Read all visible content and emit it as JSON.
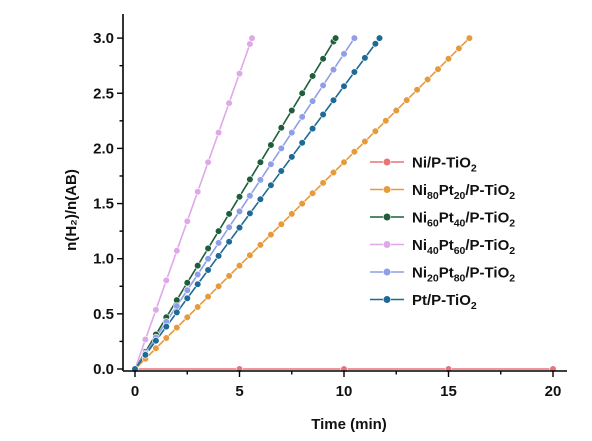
{
  "chart_data": {
    "type": "line",
    "xlabel": "Time (min)",
    "ylabel": "n(H₂)/n(AB)",
    "xlim": [
      0,
      20.5
    ],
    "ylim": [
      0,
      3.2
    ],
    "xticks": [
      "0",
      "5",
      "10",
      "15",
      "20"
    ],
    "yticks": [
      "0.0",
      "0.5",
      "1.0",
      "1.5",
      "2.0",
      "2.5",
      "3.0"
    ],
    "legend_position": "right-middle",
    "series": [
      {
        "name": "Ni/P-TiO2",
        "legend_parts": [
          [
            "Ni",
            false
          ],
          [
            "/P-TiO",
            false
          ],
          [
            "2",
            true
          ]
        ],
        "color": "#e8747a",
        "x": [
          0,
          5,
          10,
          15,
          20
        ],
        "y": [
          0,
          0,
          0,
          0,
          0
        ]
      },
      {
        "name": "Ni80Pt20/P-TiO2",
        "legend_parts": [
          [
            "Ni",
            false
          ],
          [
            "80",
            true
          ],
          [
            "Pt",
            false
          ],
          [
            "20",
            true
          ],
          [
            "/P-TiO",
            false
          ],
          [
            "2",
            true
          ]
        ],
        "color": "#e59a3c",
        "x": [
          0,
          16
        ],
        "y": [
          0,
          3.0
        ]
      },
      {
        "name": "Ni60Pt40/P-TiO2",
        "legend_parts": [
          [
            "Ni",
            false
          ],
          [
            "60",
            true
          ],
          [
            "Pt",
            false
          ],
          [
            "40",
            true
          ],
          [
            "/P-TiO",
            false
          ],
          [
            "2",
            true
          ]
        ],
        "color": "#1f5e3a",
        "x": [
          0,
          9.6
        ],
        "y": [
          0,
          3.0
        ]
      },
      {
        "name": "Ni40Pt60/P-TiO2",
        "legend_parts": [
          [
            "Ni",
            false
          ],
          [
            "40",
            true
          ],
          [
            "Pt",
            false
          ],
          [
            "60",
            true
          ],
          [
            "/P-TiO",
            false
          ],
          [
            "2",
            true
          ]
        ],
        "color": "#e0a8ea",
        "x": [
          0,
          5.6
        ],
        "y": [
          0,
          3.0
        ]
      },
      {
        "name": "Ni20Pt80/P-TiO2",
        "legend_parts": [
          [
            "Ni",
            false
          ],
          [
            "20",
            true
          ],
          [
            "Pt",
            false
          ],
          [
            "80",
            true
          ],
          [
            "/P-TiO",
            false
          ],
          [
            "2",
            true
          ]
        ],
        "color": "#8f9ee6",
        "x": [
          0,
          10.5
        ],
        "y": [
          0,
          3.0
        ]
      },
      {
        "name": "Pt/P-TiO2",
        "legend_parts": [
          [
            "Pt",
            false
          ],
          [
            "/P-TiO",
            false
          ],
          [
            "2",
            true
          ]
        ],
        "color": "#1d6a96",
        "x": [
          0,
          11.7
        ],
        "y": [
          0,
          3.0
        ]
      }
    ]
  }
}
